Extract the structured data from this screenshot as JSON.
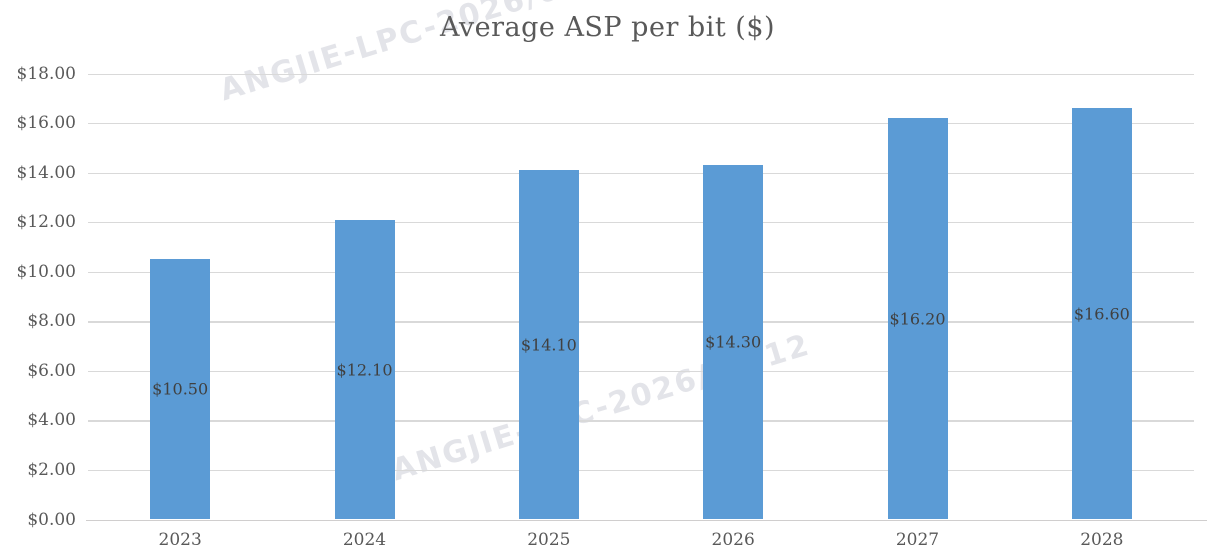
{
  "chart_data": {
    "type": "bar",
    "title": "Average ASP per bit ($)",
    "categories": [
      "2023",
      "2024",
      "2025",
      "2026",
      "2027",
      "2028"
    ],
    "values": [
      10.5,
      12.1,
      14.1,
      14.3,
      16.2,
      16.6
    ],
    "data_labels": [
      "$10.50",
      "$12.10",
      "$14.10",
      "$14.30",
      "$16.20",
      "$16.60"
    ],
    "data_label_position": "inside-center",
    "xlabel": "",
    "ylabel": "",
    "ylim": [
      0,
      18
    ],
    "ytick_values": [
      0,
      2,
      4,
      6,
      8,
      10,
      12,
      14,
      16,
      18
    ],
    "ytick_labels": [
      "$0.00",
      "$2.00",
      "$4.00",
      "$6.00",
      "$8.00",
      "$10.00",
      "$12.00",
      "$14.00",
      "$16.00",
      "$18.00"
    ],
    "grid": true,
    "legend": false
  },
  "watermark": {
    "text": "ANGJIE-LPC-2026/03/12"
  },
  "colors": {
    "bar": "#5B9BD5",
    "gridline": "#D9D9D9",
    "axis_line": "#D0CECE",
    "title_text": "#595959",
    "tick_text": "#595959",
    "data_label_text": "#404040",
    "background": "#FFFFFF",
    "watermark_text": "#E3E4E9"
  }
}
